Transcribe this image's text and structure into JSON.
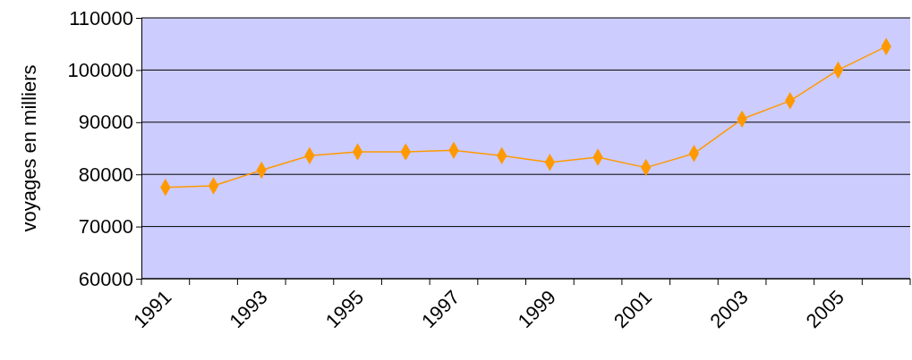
{
  "chart_data": {
    "type": "line",
    "ylabel": "voyages en milliers",
    "categories": [
      "1991",
      null,
      "1993",
      null,
      "1995",
      null,
      "1997",
      null,
      "1999",
      null,
      "2001",
      null,
      "2003",
      null,
      "2005",
      null
    ],
    "series": [
      {
        "color": "#ff9900",
        "values": [
          77500,
          77800,
          80800,
          83600,
          84300,
          84300,
          84600,
          83600,
          82300,
          83300,
          81300,
          84000,
          90600,
          94100,
          100000,
          104500
        ]
      }
    ],
    "ylim": [
      60000,
      110000
    ],
    "yticks": [
      60000,
      70000,
      80000,
      90000,
      100000,
      110000
    ],
    "grid": "y",
    "marker": "diamond",
    "line_style": "solid"
  }
}
